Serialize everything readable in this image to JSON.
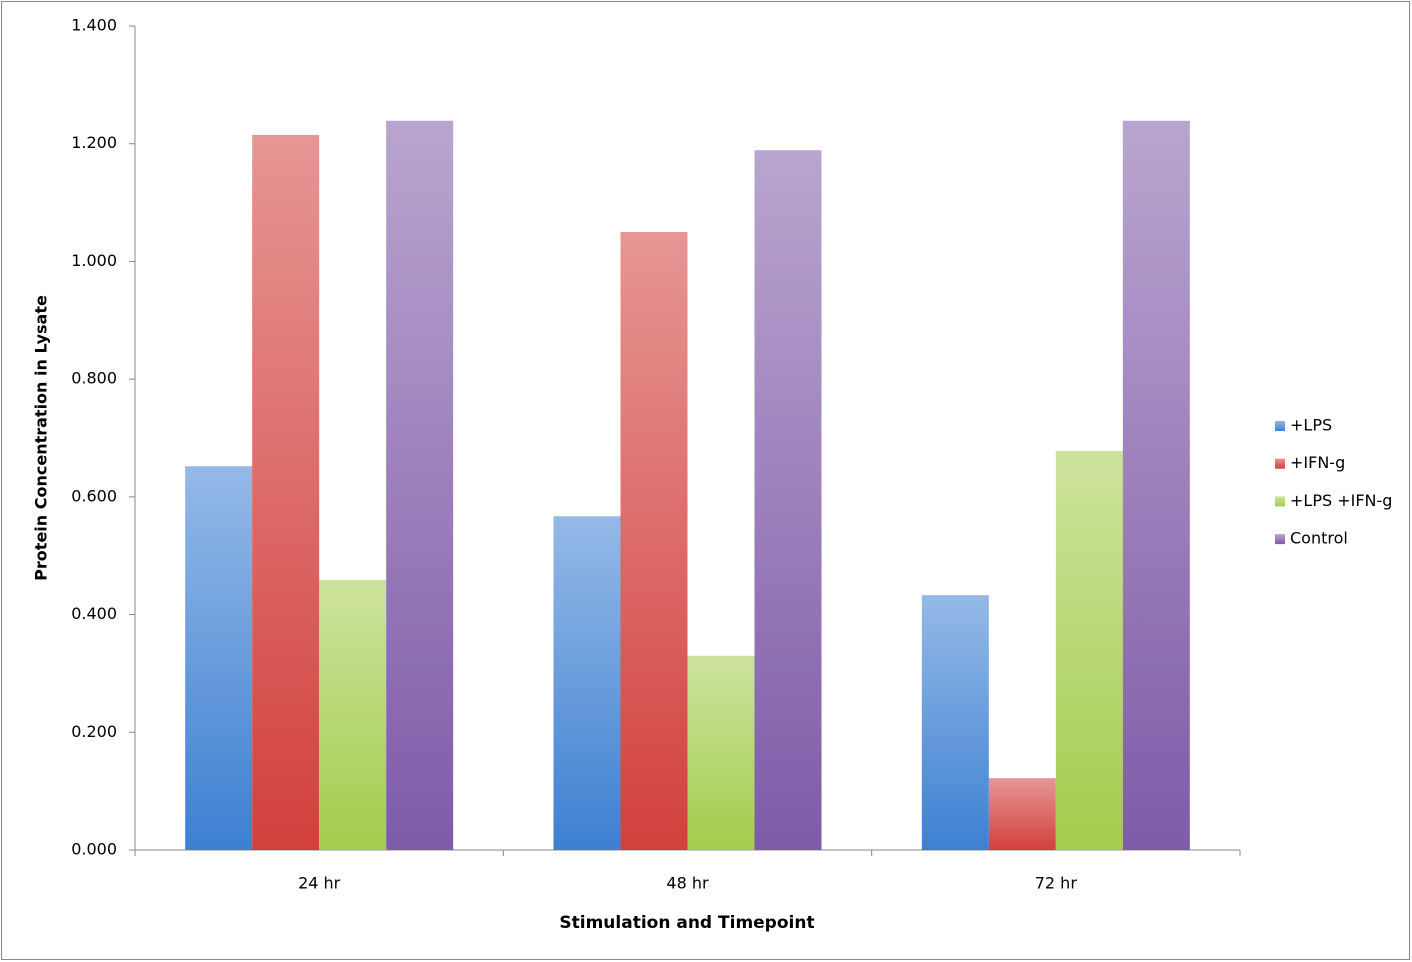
{
  "chart_data": {
    "type": "bar",
    "x_label": "Stimulation and Timepoint",
    "y_label": "Protein Concentration in Lysate",
    "categories": [
      "24 hr",
      "48 hr",
      "72 hr"
    ],
    "series": [
      {
        "name": "+LPS",
        "color": "#3d80d2",
        "values": [
          0.652,
          0.567,
          0.433
        ]
      },
      {
        "name": "+IFN-g",
        "color": "#d2403d",
        "values": [
          1.215,
          1.05,
          0.122
        ]
      },
      {
        "name": "+LPS +IFN-g",
        "color": "#a4cc4c",
        "values": [
          0.459,
          0.33,
          0.678
        ]
      },
      {
        "name": "Control",
        "color": "#7f5ba8",
        "values": [
          1.239,
          1.189,
          1.239
        ]
      }
    ],
    "ylim": [
      0,
      1.4
    ],
    "yticks": [
      {
        "value": 0,
        "label": "0.000"
      },
      {
        "value": 0.2,
        "label": "0.200"
      },
      {
        "value": 0.4,
        "label": "0.400"
      },
      {
        "value": 0.6,
        "label": "0.600"
      },
      {
        "value": 0.8,
        "label": "0.800"
      },
      {
        "value": 1.0,
        "label": "1.000"
      },
      {
        "value": 1.2,
        "label": "1.200"
      },
      {
        "value": 1.4,
        "label": "1.400"
      }
    ],
    "grid": false,
    "legend": "right"
  }
}
